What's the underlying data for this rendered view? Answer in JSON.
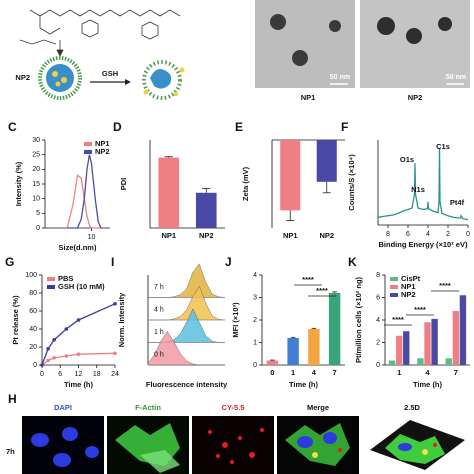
{
  "scheme": {
    "np2": "NP2",
    "gsh": "GSH"
  },
  "tem": {
    "captions": [
      "NP1",
      "NP2"
    ],
    "scale_bars": [
      "50 nm",
      "50 nm"
    ]
  },
  "chart_data": [
    {
      "label": "C",
      "type": "line",
      "xscale": "log",
      "xlim": [
        1,
        25
      ],
      "xticks": [
        10
      ],
      "ylim": [
        0,
        30
      ],
      "yticks": [
        0,
        5,
        10,
        15,
        20,
        25,
        30
      ],
      "xlabel": "Size(d.nm)",
      "ylabel": "Intensity (%)",
      "legend": "upper right",
      "x": [
        3,
        4,
        5,
        6,
        7,
        8,
        9,
        10,
        12,
        14,
        16
      ],
      "series": [
        {
          "name": "NP1",
          "color": "#f07f84",
          "values": [
            0,
            8,
            18,
            17,
            10,
            4,
            1,
            0,
            0,
            0,
            0
          ]
        },
        {
          "name": "NP2",
          "color": "#4a4aa6",
          "values": [
            0,
            0,
            0,
            3,
            10,
            20,
            25,
            22,
            10,
            2,
            0
          ]
        }
      ]
    },
    {
      "label": "D",
      "type": "bar",
      "ylim": [
        0,
        0.2
      ],
      "ylabel": "PDI",
      "categories": [
        "NP1",
        "NP2"
      ],
      "values": [
        0.16,
        0.08
      ],
      "errors": [
        0.002,
        0.01
      ],
      "colors": [
        "#f07f84",
        "#4a4aa6"
      ]
    },
    {
      "label": "E",
      "type": "bar",
      "ylim": [
        -20,
        0
      ],
      "ylabel": "Zeta (mV)",
      "categories": [
        "NP1",
        "NP2"
      ],
      "values": [
        -16,
        -9.5
      ],
      "errors": [
        2.3,
        2.5
      ],
      "colors": [
        "#f07f84",
        "#4a4aa6"
      ]
    },
    {
      "label": "F",
      "type": "line",
      "xlim": [
        9,
        0
      ],
      "xticks": [
        8,
        6,
        4,
        2,
        0
      ],
      "ylim": [
        0,
        11
      ],
      "xlabel": "Binding Energy (×10² eV)",
      "ylabel": "Counts/S (×10⁴)",
      "annotations": [
        "O1s",
        "C1s",
        "N1s",
        "Pt4f"
      ],
      "x": [
        9,
        8.5,
        8,
        7.5,
        7,
        6.5,
        6,
        5.6,
        5.35,
        5.3,
        5.25,
        5.0,
        4.5,
        4.05,
        4.0,
        3.95,
        3.5,
        3.0,
        2.9,
        2.85,
        2.8,
        2.6,
        2,
        1.5,
        1,
        0.75,
        0.7,
        0.5,
        0
      ],
      "series": [
        {
          "color": "#2f8f8f",
          "values": [
            1,
            1.1,
            1.2,
            1.3,
            1.5,
            1.8,
            2,
            2.2,
            4,
            8,
            4,
            2.2,
            2,
            2.1,
            3,
            2.1,
            1.8,
            1.6,
            3,
            10,
            3,
            1.5,
            1.2,
            1,
            0.9,
            0.9,
            1.2,
            0.8,
            0.7
          ]
        }
      ]
    },
    {
      "label": "G",
      "type": "line",
      "markers": true,
      "xlim": [
        0,
        24
      ],
      "xticks": [
        0,
        6,
        12,
        18,
        24
      ],
      "ylim": [
        0,
        100
      ],
      "yticks": [
        0,
        20,
        40,
        60,
        80,
        100
      ],
      "xlabel": "Time (h)",
      "ylabel": "Pt release (%)",
      "legend": "upper left",
      "x": [
        0,
        2,
        4,
        8,
        12,
        24
      ],
      "series": [
        {
          "name": "PBS",
          "color": "#f07f84",
          "values": [
            0,
            5,
            8,
            10,
            12,
            13
          ]
        },
        {
          "name": "GSH (10 mM)",
          "color": "#3c3c9c",
          "values": [
            0,
            18,
            28,
            40,
            50,
            68
          ]
        }
      ]
    },
    {
      "label": "I",
      "type": "ridgeline",
      "xlim": [
        0,
        12
      ],
      "ylim": [
        0,
        100
      ],
      "xlabel": "Fluorescence intensity",
      "ylabel": "Norm. Intensity",
      "x": [
        0,
        1,
        2,
        3,
        4,
        5,
        6,
        7,
        8,
        9,
        10,
        11,
        12
      ],
      "series": [
        {
          "name": "7 h",
          "color": "#e3b23c",
          "values": [
            0,
            0,
            0,
            0,
            2,
            8,
            25,
            75,
            100,
            45,
            10,
            2,
            0
          ]
        },
        {
          "name": "4 h",
          "color": "#f2c14e",
          "values": [
            0,
            0,
            0,
            0,
            3,
            10,
            30,
            70,
            100,
            50,
            12,
            2,
            0
          ]
        },
        {
          "name": "1 h",
          "color": "#5bc0de",
          "values": [
            0,
            0,
            0,
            2,
            8,
            25,
            60,
            100,
            60,
            20,
            4,
            0,
            0
          ]
        },
        {
          "name": "0 h",
          "color": "#f29aa2",
          "values": [
            5,
            30,
            70,
            100,
            70,
            35,
            12,
            3,
            0,
            0,
            0,
            0,
            0
          ]
        }
      ]
    },
    {
      "label": "J",
      "type": "bar",
      "ylim": [
        0,
        4
      ],
      "yticks": [
        0,
        1,
        2,
        3,
        4
      ],
      "xlabel": "Time (h)",
      "ylabel": "MFI (×10³)",
      "categories": [
        "0",
        "1",
        "4",
        "7"
      ],
      "values": [
        0.2,
        1.2,
        1.6,
        3.2
      ],
      "errors": [
        0.02,
        0.03,
        0.03,
        0.05
      ],
      "colors": [
        "#f07f84",
        "#3f7fd6",
        "#f2a541",
        "#3aa57a"
      ],
      "annotations": [
        "****",
        "****"
      ]
    },
    {
      "label": "K",
      "type": "bar",
      "ylim": [
        0,
        8
      ],
      "yticks": [
        0,
        2,
        4,
        6,
        8
      ],
      "xlabel": "Time (h)",
      "ylabel": "Pt/million cells (×10² ng)",
      "legend": "upper left",
      "categories": [
        "1",
        "4",
        "7"
      ],
      "annotations": [
        "****",
        "****",
        "****"
      ],
      "series": [
        {
          "name": "CisPt",
          "color": "#5dbb8a",
          "values": [
            0.4,
            0.6,
            0.6
          ]
        },
        {
          "name": "NP1",
          "color": "#f07f84",
          "values": [
            2.6,
            3.8,
            4.8
          ]
        },
        {
          "name": "NP2",
          "color": "#4a4aa6",
          "values": [
            3.0,
            4.1,
            6.2
          ]
        }
      ]
    }
  ],
  "imaging": {
    "label": "H",
    "row_label": "7h",
    "channels": [
      "DAPI",
      "F-Actin",
      "CY-5.5",
      "Merge",
      "2.5D"
    ]
  }
}
